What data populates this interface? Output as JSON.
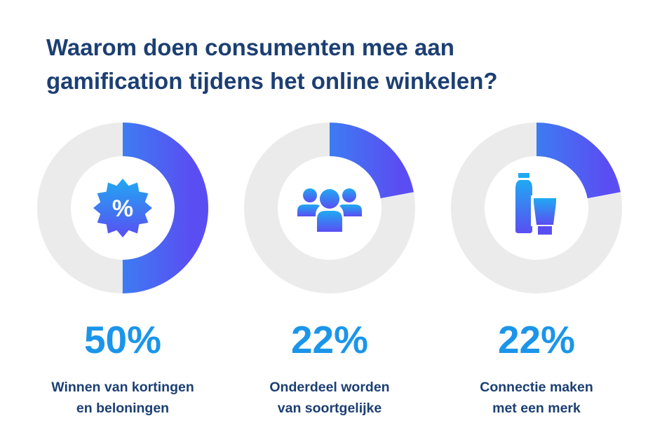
{
  "title": {
    "line1": "Waarom doen consumenten mee aan",
    "line2": "gamification tijdens het online winkelen?"
  },
  "colors": {
    "title": "#1c3f73",
    "accent_light": "#20a9f2",
    "accent_dark": "#5a4ef2",
    "track": "#ebebeb",
    "value_text": "#1b95ea"
  },
  "chart_data": {
    "type": "donut",
    "unit": "%",
    "max": 100,
    "items": [
      {
        "value": 50,
        "value_label": "50%",
        "label_lines": [
          "Winnen van kortingen",
          "en beloningen"
        ],
        "icon": "percent-badge-icon"
      },
      {
        "value": 22,
        "value_label": "22%",
        "label_lines": [
          "Onderdeel worden",
          "van soortgelijke"
        ],
        "icon": "people-group-icon"
      },
      {
        "value": 22,
        "value_label": "22%",
        "label_lines": [
          "Connectie maken",
          "met een merk"
        ],
        "icon": "bottle-tube-icon"
      }
    ]
  }
}
